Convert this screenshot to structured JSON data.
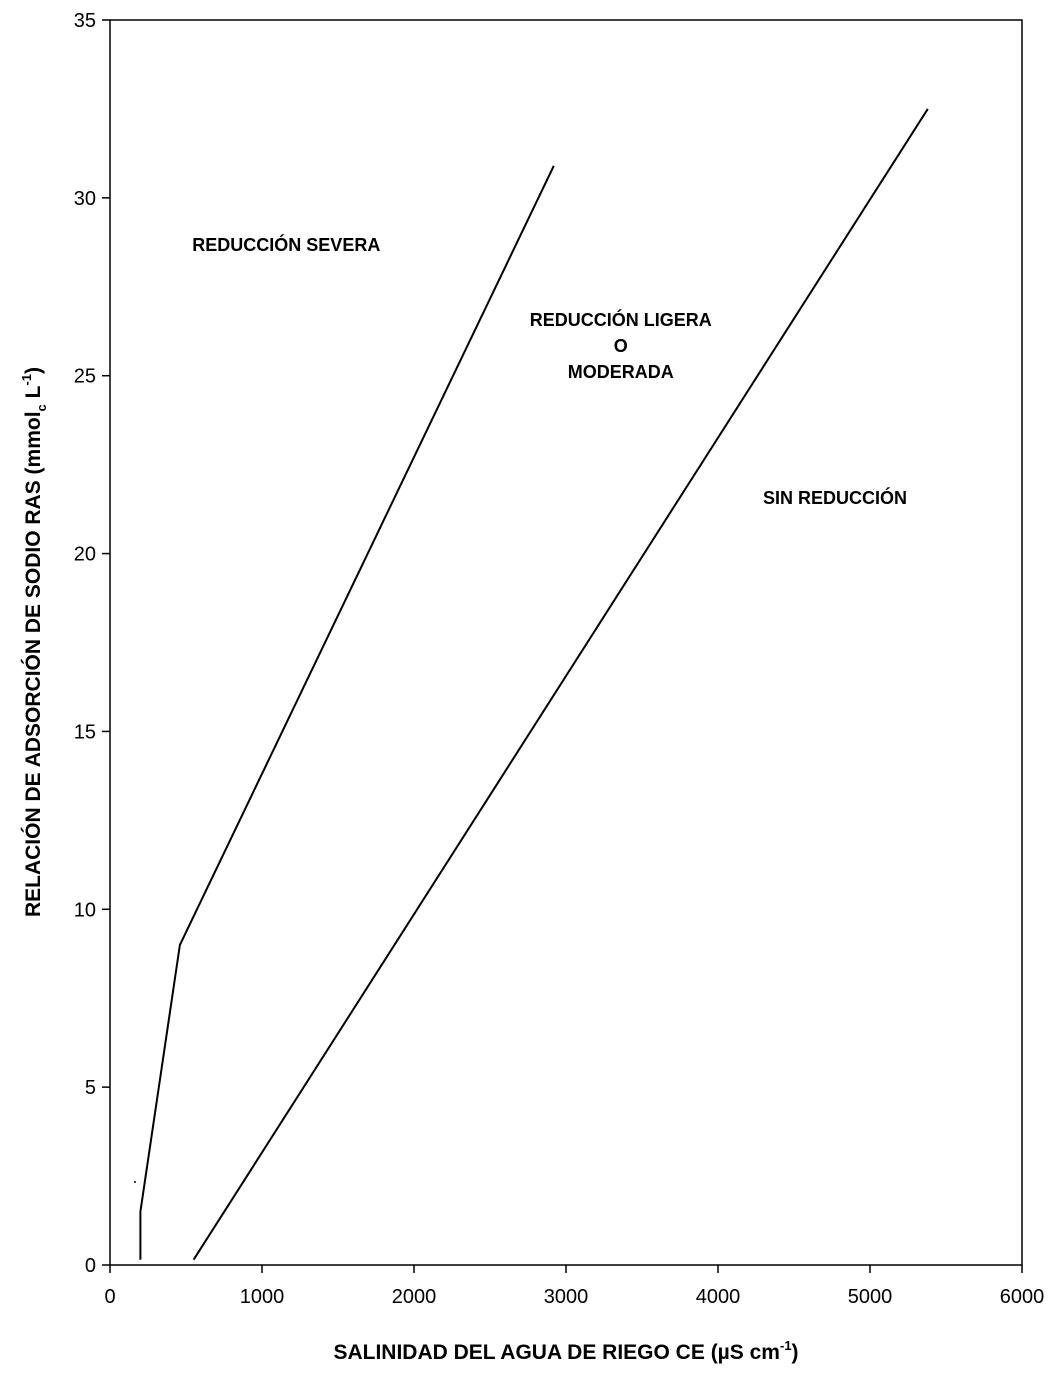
{
  "chart_data": {
    "type": "line",
    "title": "",
    "xlabel": {
      "main": "SALINIDAD DEL AGUA DE RIEGO CE (µS cm",
      "sup": "-1",
      "close": ")"
    },
    "ylabel": {
      "main": "RELACIÓN DE ADSORCIÓN DE SODIO RAS (mmol",
      "sub": "c",
      "mid": " L",
      "sup": "-1",
      "close": ")"
    },
    "xlim": [
      0,
      6000
    ],
    "ylim": [
      0,
      35
    ],
    "xticks": [
      0,
      1000,
      2000,
      3000,
      4000,
      5000,
      6000
    ],
    "yticks": [
      0,
      5,
      10,
      15,
      20,
      25,
      30,
      35
    ],
    "grid": false,
    "series": [
      {
        "x": [
          200,
          200,
          460,
          2920
        ],
        "y": [
          0.15,
          1.5,
          9.0,
          30.9
        ]
      },
      {
        "x": [
          550,
          5380
        ],
        "y": [
          0.15,
          32.5
        ]
      }
    ],
    "regions": [
      {
        "lines": [
          "REDUCCIÓN SEVERA"
        ],
        "x": 1160,
        "y": 28.5
      },
      {
        "lines": [
          "REDUCCIÓN LIGERA",
          "O",
          "MODERADA"
        ],
        "x": 3360,
        "y": 26.4
      },
      {
        "lines": [
          "SIN REDUCCIÓN"
        ],
        "x": 4770,
        "y": 21.4
      }
    ],
    "line_color": "#000000"
  }
}
